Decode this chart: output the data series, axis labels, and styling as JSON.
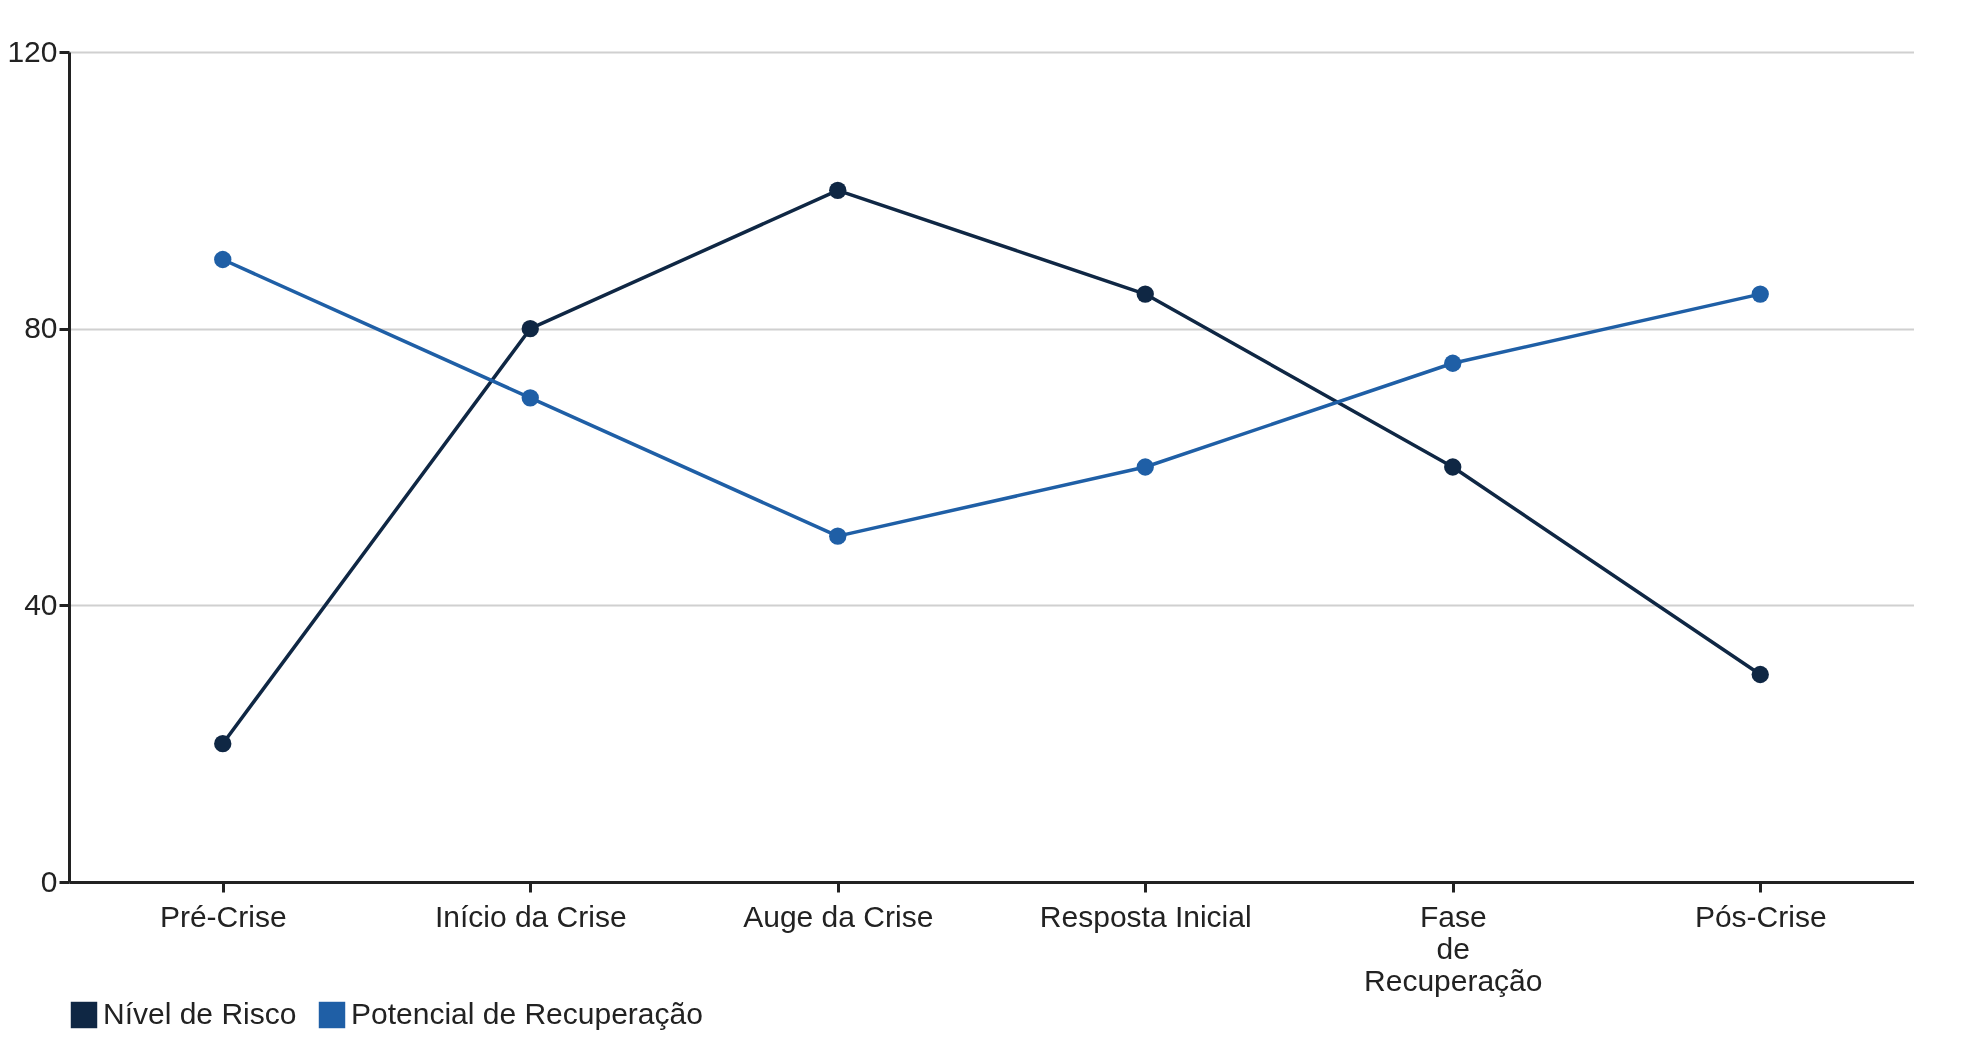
{
  "chart_data": {
    "type": "line",
    "categories": [
      "Pré-Crise",
      "Início da Crise",
      "Auge da Crise",
      "Resposta Inicial",
      "Fase de Recuperação",
      "Pós-Crise"
    ],
    "series": [
      {
        "name": "Nível de Risco",
        "color": "#0f2744",
        "values": [
          20,
          80,
          100,
          85,
          60,
          30
        ]
      },
      {
        "name": "Potencial de Recuperação",
        "color": "#1f5fa6",
        "values": [
          90,
          70,
          50,
          60,
          75,
          85
        ]
      }
    ],
    "ylim": [
      0,
      120
    ],
    "yticks": [
      0,
      40,
      80,
      120
    ],
    "grid": "y",
    "legend": "bottom",
    "marker": "circle",
    "line_style": "solid"
  }
}
